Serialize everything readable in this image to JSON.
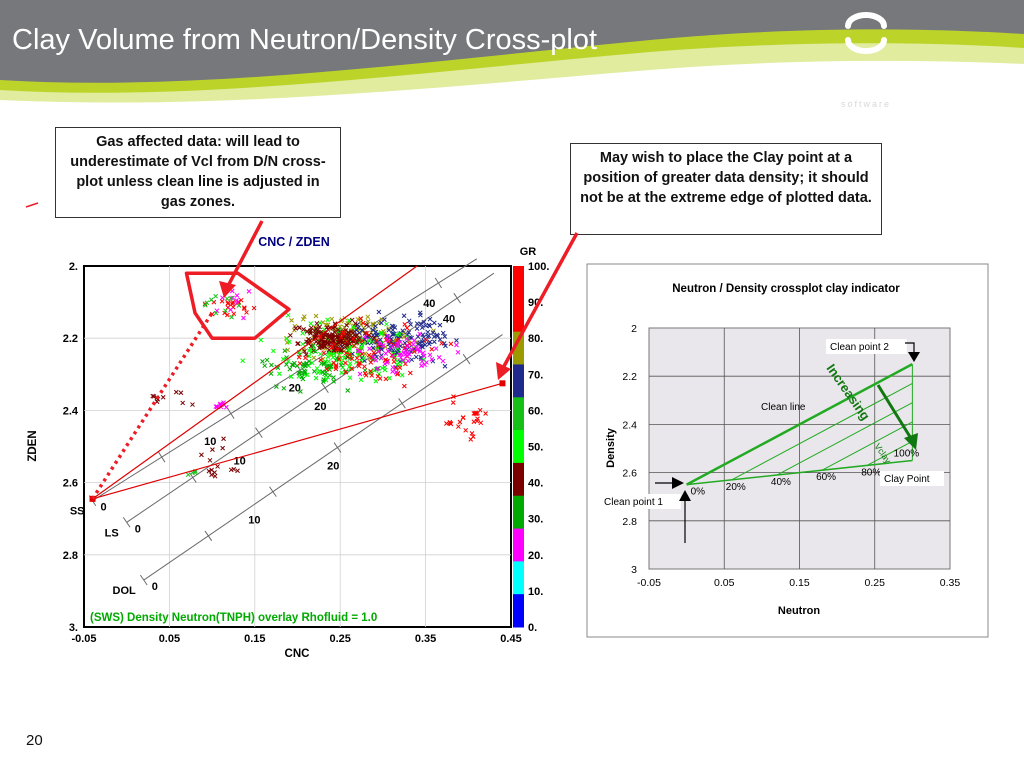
{
  "slide": {
    "title": "Clay Volume from  Neutron/Density Cross-plot",
    "logo_name": "senergy",
    "logo_tagline": "software",
    "slide_number": "20",
    "colors": {
      "header_bg": "#77787b",
      "accent_green": "#bcd42a",
      "arrow_red": "#ee1c25"
    }
  },
  "callouts": {
    "left": "Gas affected data: will lead to underestimate of Vcl from D/N cross-plot unless clean line is adjusted in gas zones.",
    "right": "May wish to place the Clay point at a position of greater data density; it should not be at the extreme edge of plotted data."
  },
  "chart_data": [
    {
      "type": "scatter",
      "title": "CNC / ZDEN",
      "xlabel": "CNC",
      "ylabel": "ZDEN",
      "xlim": [
        -0.05,
        0.45
      ],
      "ylim": [
        3.0,
        2.0
      ],
      "x_ticks": [
        "-0.05",
        "0.05",
        "0.15",
        "0.25",
        "0.35",
        "0.45"
      ],
      "y_ticks": [
        "2.",
        "2.2",
        "2.4",
        "2.6",
        "2.8",
        "3."
      ],
      "overlay_label": "(SWS) Density Neutron(TNPH) overlay Rhofluid = 1.0",
      "colorbar": {
        "label": "GR",
        "ticks": [
          "100.",
          "90.",
          "80.",
          "70.",
          "60.",
          "50.",
          "40.",
          "30.",
          "20.",
          "10.",
          "0."
        ],
        "colors": [
          "#ff0000",
          "#ff0000",
          "#9b9b00",
          "#1f2a8c",
          "#16c016",
          "#00ff00",
          "#7a0000",
          "#00aa00",
          "#ff00ff",
          "#00ffff",
          "#0000ff"
        ]
      },
      "lithology_lines": [
        {
          "name": "SS",
          "start_label": "0",
          "ticks": [
            "10",
            "20",
            "40"
          ],
          "x0": -0.04,
          "y0": 2.65,
          "x1": 0.41,
          "y1": 1.98
        },
        {
          "name": "LS",
          "start_label": "0",
          "ticks": [
            "10",
            "20",
            "40"
          ],
          "x0": 0.0,
          "y0": 2.71,
          "x1": 0.43,
          "y1": 2.02
        },
        {
          "name": "DOL",
          "start_label": "0",
          "ticks": [
            "10",
            "20"
          ],
          "x0": 0.02,
          "y0": 2.87,
          "x1": 0.44,
          "y1": 2.19
        }
      ],
      "clean_line": {
        "x0": -0.04,
        "y0": 2.645,
        "x1": 0.34,
        "y1": 2.0
      },
      "clay_line": {
        "x0": -0.04,
        "y0": 2.645,
        "x1": 0.44,
        "y1": 2.325
      },
      "clean_point": {
        "x": -0.04,
        "y": 2.645
      },
      "clay_point": {
        "x": 0.44,
        "y": 2.325
      },
      "gas_zone_box": [
        [
          0.07,
          2.02
        ],
        [
          0.13,
          2.02
        ],
        [
          0.19,
          2.12
        ],
        [
          0.15,
          2.2
        ],
        [
          0.1,
          2.2
        ],
        [
          0.08,
          2.13
        ]
      ],
      "point_clusters": [
        {
          "gr": 80,
          "cx": 0.26,
          "cy": 2.2,
          "sx": 0.07,
          "sy": 0.06,
          "n": 150
        },
        {
          "gr": 70,
          "cx": 0.32,
          "cy": 2.2,
          "sx": 0.06,
          "sy": 0.06,
          "n": 140
        },
        {
          "gr": 50,
          "cx": 0.25,
          "cy": 2.24,
          "sx": 0.08,
          "sy": 0.08,
          "n": 140
        },
        {
          "gr": 40,
          "cx": 0.24,
          "cy": 2.2,
          "sx": 0.04,
          "sy": 0.04,
          "n": 150
        },
        {
          "gr": 30,
          "cx": 0.22,
          "cy": 2.28,
          "sx": 0.06,
          "sy": 0.06,
          "n": 60
        },
        {
          "gr": 90,
          "cx": 0.28,
          "cy": 2.25,
          "sx": 0.07,
          "sy": 0.07,
          "n": 80
        },
        {
          "gr": 20,
          "cx": 0.33,
          "cy": 2.24,
          "sx": 0.05,
          "sy": 0.05,
          "n": 60
        },
        {
          "gr": 100,
          "cx": 0.4,
          "cy": 2.43,
          "sx": 0.04,
          "sy": 0.05,
          "n": 25
        },
        {
          "gr": 90,
          "cx": 0.12,
          "cy": 2.11,
          "sx": 0.03,
          "sy": 0.04,
          "n": 20
        },
        {
          "gr": 20,
          "cx": 0.12,
          "cy": 2.11,
          "sx": 0.03,
          "sy": 0.04,
          "n": 10
        },
        {
          "gr": 60,
          "cx": 0.11,
          "cy": 2.1,
          "sx": 0.025,
          "sy": 0.04,
          "n": 10
        },
        {
          "gr": 20,
          "cx": 0.11,
          "cy": 2.39,
          "sx": 0.01,
          "sy": 0.01,
          "n": 10
        },
        {
          "gr": 40,
          "cx": 0.1,
          "cy": 2.55,
          "sx": 0.03,
          "sy": 0.05,
          "n": 14
        },
        {
          "gr": 60,
          "cx": 0.08,
          "cy": 2.57,
          "sx": 0.01,
          "sy": 0.01,
          "n": 4
        },
        {
          "gr": 40,
          "cx": 0.06,
          "cy": 2.37,
          "sx": 0.03,
          "sy": 0.03,
          "n": 10
        }
      ]
    },
    {
      "type": "line",
      "title": "Neutron / Density crossplot clay indicator",
      "xlabel": "Neutron",
      "ylabel": "Density",
      "xlim": [
        -0.05,
        0.35
      ],
      "ylim": [
        3.0,
        2.0
      ],
      "x_ticks": [
        "-0.05",
        "0.05",
        "0.15",
        "0.25",
        "0.35"
      ],
      "y_ticks": [
        "2",
        "2.2",
        "2.4",
        "2.6",
        "2.8",
        "3"
      ],
      "clean_line_label": "Clean line",
      "clean_point_1": {
        "x": 0.0,
        "y": 2.65,
        "label": "Clean point 1"
      },
      "clean_point_2": {
        "x": 0.3,
        "y": 2.15,
        "label": "Clean point 2"
      },
      "clay_point": {
        "x": 0.3,
        "y": 2.55,
        "label": "Clay Point"
      },
      "vclay_labels": [
        "0%",
        "20%",
        "40%",
        "60%",
        "80%",
        "100%"
      ],
      "arrow_label": "Increasing",
      "arrow_sublabel": "Vclay"
    }
  ]
}
